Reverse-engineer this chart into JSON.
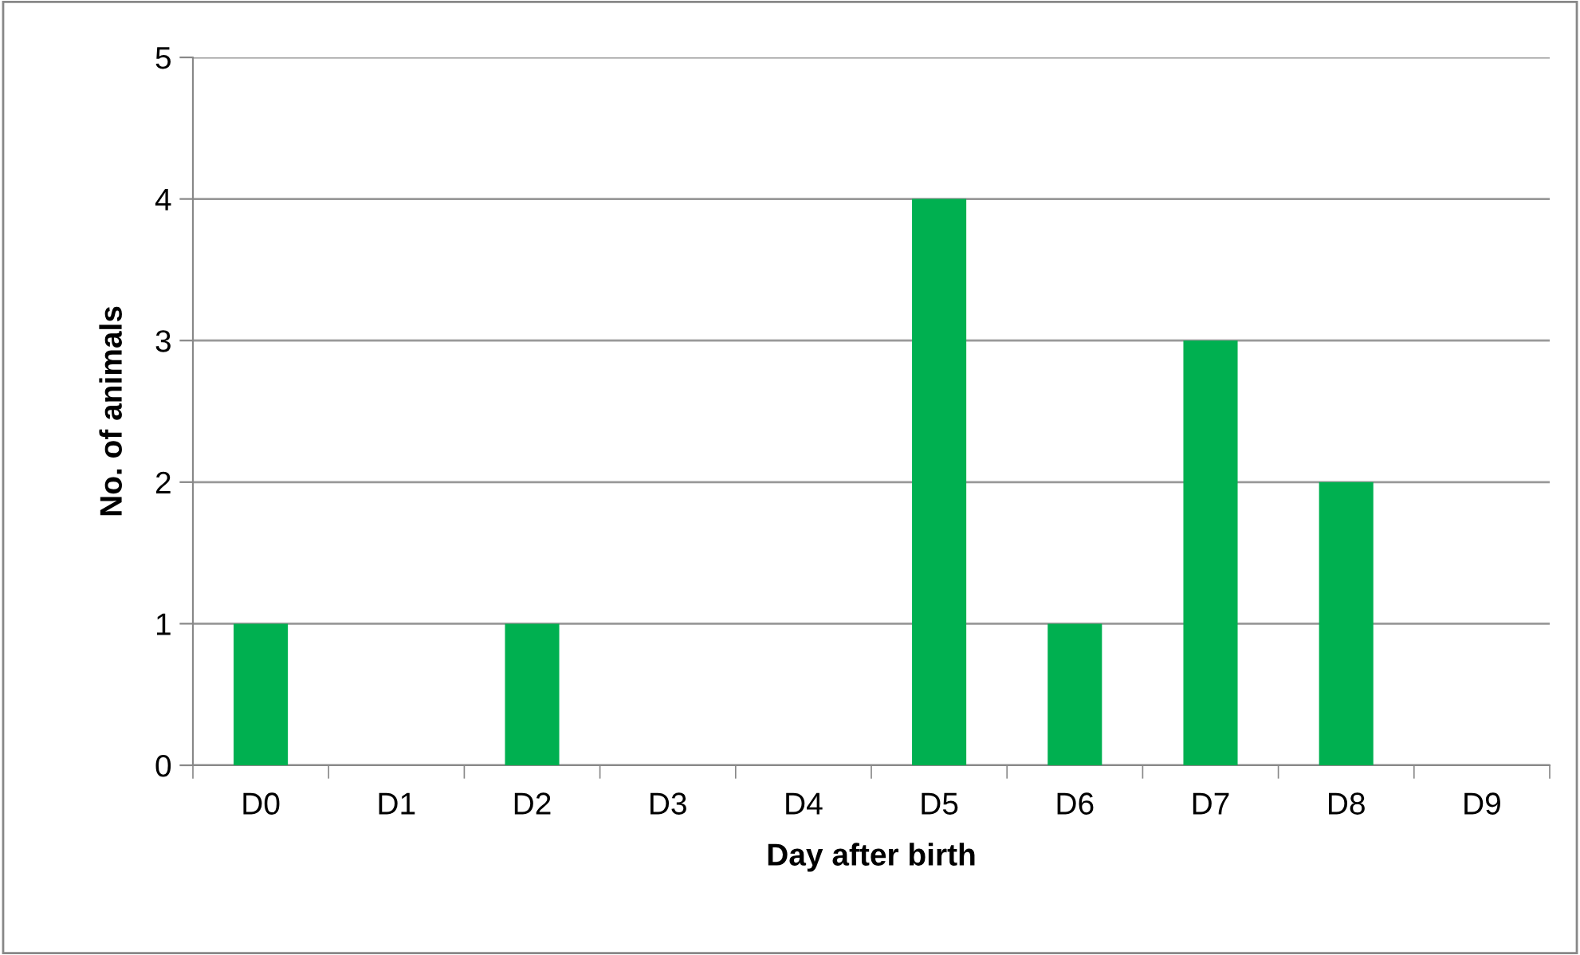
{
  "chart_data": {
    "type": "bar",
    "xlabel": "Day after birth",
    "ylabel": "No. of animals",
    "categories": [
      "D0",
      "D1",
      "D2",
      "D3",
      "D4",
      "D5",
      "D6",
      "D7",
      "D8",
      "D9"
    ],
    "values": [
      1,
      0,
      1,
      0,
      0,
      4,
      1,
      3,
      2,
      0
    ],
    "color": "#00b050",
    "ylim": [
      0,
      5
    ],
    "yticks": [
      0,
      1,
      2,
      3,
      4,
      5
    ],
    "grid": "y",
    "legend": false
  }
}
